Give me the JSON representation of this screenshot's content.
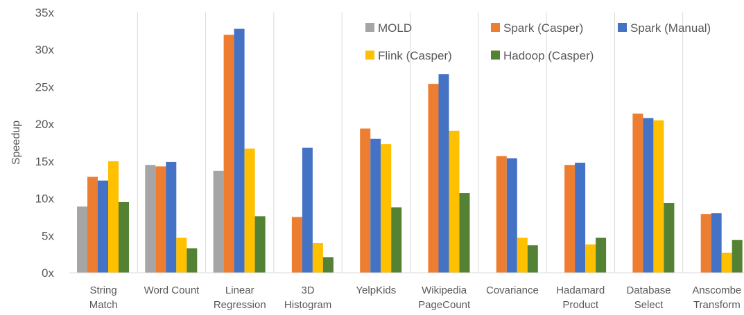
{
  "chart_data": {
    "type": "bar",
    "title": "",
    "xlabel": "",
    "ylabel": "Speedup",
    "ylim": [
      0,
      35
    ],
    "yticks": [
      "0x",
      "5x",
      "10x",
      "15x",
      "20x",
      "25x",
      "30x",
      "35x"
    ],
    "grid": "vertical separators between categories",
    "legend_position": "top-right, inside plot",
    "categories": [
      [
        "String",
        "Match"
      ],
      [
        "Word Count"
      ],
      [
        "Linear",
        "Regression"
      ],
      [
        "3D",
        "Histogram"
      ],
      [
        "YelpKids"
      ],
      [
        "Wikipedia",
        "PageCount"
      ],
      [
        "Covariance"
      ],
      [
        "Hadamard",
        "Product"
      ],
      [
        "Database",
        "Select"
      ],
      [
        "Anscombe",
        "Transform"
      ]
    ],
    "series": [
      {
        "name": "MOLD",
        "color": "#a5a5a5",
        "values": [
          8.9,
          14.5,
          13.7,
          null,
          null,
          null,
          null,
          null,
          null,
          null
        ]
      },
      {
        "name": "Spark (Casper)",
        "color": "#ed7d31",
        "values": [
          12.9,
          14.3,
          32.0,
          7.5,
          19.4,
          25.4,
          15.7,
          14.5,
          21.4,
          7.9
        ]
      },
      {
        "name": "Spark (Manual)",
        "color": "#4472c4",
        "values": [
          12.4,
          14.9,
          32.8,
          16.8,
          18.0,
          26.7,
          15.4,
          14.8,
          20.8,
          8.0
        ]
      },
      {
        "name": "Flink (Casper)",
        "color": "#ffc000",
        "values": [
          15.0,
          4.7,
          16.7,
          4.0,
          17.3,
          19.1,
          4.7,
          3.8,
          20.5,
          2.7
        ]
      },
      {
        "name": "Hadoop (Casper)",
        "color": "#548235",
        "values": [
          9.5,
          3.3,
          7.6,
          2.1,
          8.8,
          10.7,
          3.7,
          4.7,
          9.4,
          4.4
        ]
      }
    ],
    "legend_rows": [
      [
        "MOLD",
        "Spark (Casper)",
        "Spark (Manual)"
      ],
      [
        "Flink (Casper)",
        "Hadoop (Casper)"
      ]
    ]
  }
}
